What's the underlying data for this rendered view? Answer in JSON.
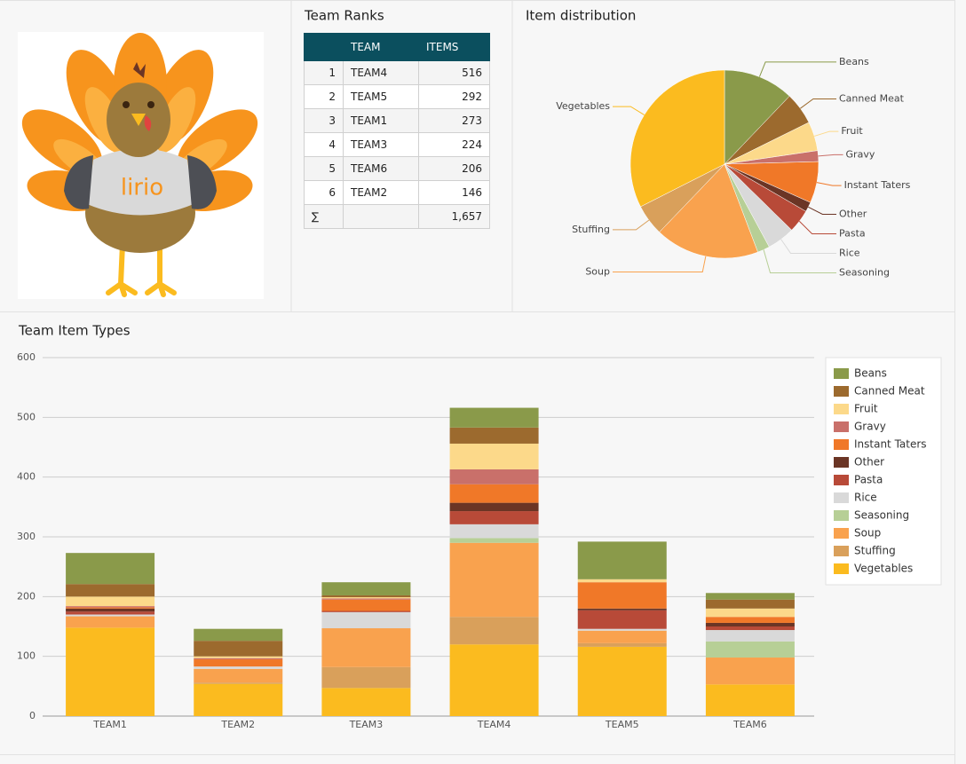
{
  "logo_text": "lirio",
  "team_ranks": {
    "title": "Team Ranks",
    "columns": [
      "TEAM",
      "ITEMS"
    ],
    "rows": [
      [
        1,
        "TEAM4",
        516
      ],
      [
        2,
        "TEAM5",
        292
      ],
      [
        3,
        "TEAM1",
        273
      ],
      [
        4,
        "TEAM3",
        224
      ],
      [
        5,
        "TEAM6",
        206
      ],
      [
        6,
        "TEAM2",
        146
      ]
    ],
    "total_symbol": "∑",
    "total": "1,657"
  },
  "chart_data": [
    {
      "type": "pie",
      "title": "Item distribution",
      "categories": [
        "Beans",
        "Canned Meat",
        "Fruit",
        "Gravy",
        "Instant Taters",
        "Other",
        "Pasta",
        "Rice",
        "Seasoning",
        "Soup",
        "Stuffing",
        "Vegetables"
      ],
      "values": [
        201,
        92,
        83,
        31,
        118,
        28,
        66,
        79,
        35,
        297,
        89,
        538
      ],
      "colors": [
        "#8a9a4a",
        "#9c6a2e",
        "#fcd98a",
        "#c9706a",
        "#f07828",
        "#6b3525",
        "#b84a38",
        "#d9d9d9",
        "#b7cf96",
        "#f9a24e",
        "#d9a05b",
        "#fbbb1f"
      ]
    },
    {
      "type": "stacked_bar",
      "title": "Team Item Types",
      "categories": [
        "TEAM1",
        "TEAM2",
        "TEAM3",
        "TEAM4",
        "TEAM5",
        "TEAM6"
      ],
      "ylim": [
        0,
        600
      ],
      "yticks": [
        0,
        100,
        200,
        300,
        400,
        500,
        600
      ],
      "grid": true,
      "legend": "right",
      "series": [
        {
          "name": "Beans",
          "color": "#8a9a4a",
          "values": [
            52,
            20,
            22,
            33,
            63,
            11
          ]
        },
        {
          "name": "Canned Meat",
          "color": "#9c6a2e",
          "values": [
            21,
            26,
            3,
            27,
            0,
            15
          ]
        },
        {
          "name": "Fruit",
          "color": "#fcd98a",
          "values": [
            16,
            3,
            2,
            43,
            5,
            14
          ]
        },
        {
          "name": "Gravy",
          "color": "#c9706a",
          "values": [
            2,
            2,
            2,
            25,
            0,
            0
          ]
        },
        {
          "name": "Instant Taters",
          "color": "#f07828",
          "values": [
            2,
            12,
            19,
            31,
            44,
            10
          ]
        },
        {
          "name": "Other",
          "color": "#6b3525",
          "values": [
            5,
            0,
            0,
            14,
            3,
            6
          ]
        },
        {
          "name": "Pasta",
          "color": "#b84a38",
          "values": [
            5,
            0,
            2,
            22,
            31,
            6
          ]
        },
        {
          "name": "Rice",
          "color": "#d9d9d9",
          "values": [
            3,
            4,
            27,
            23,
            3,
            19
          ]
        },
        {
          "name": "Seasoning",
          "color": "#b7cf96",
          "values": [
            0,
            0,
            0,
            8,
            0,
            27
          ]
        },
        {
          "name": "Soup",
          "color": "#f9a24e",
          "values": [
            19,
            23,
            65,
            124,
            21,
            45
          ]
        },
        {
          "name": "Stuffing",
          "color": "#d9a05b",
          "values": [
            0,
            2,
            35,
            46,
            6,
            0
          ]
        },
        {
          "name": "Vegetables",
          "color": "#fbbb1f",
          "values": [
            148,
            54,
            47,
            120,
            116,
            53
          ]
        }
      ]
    }
  ]
}
